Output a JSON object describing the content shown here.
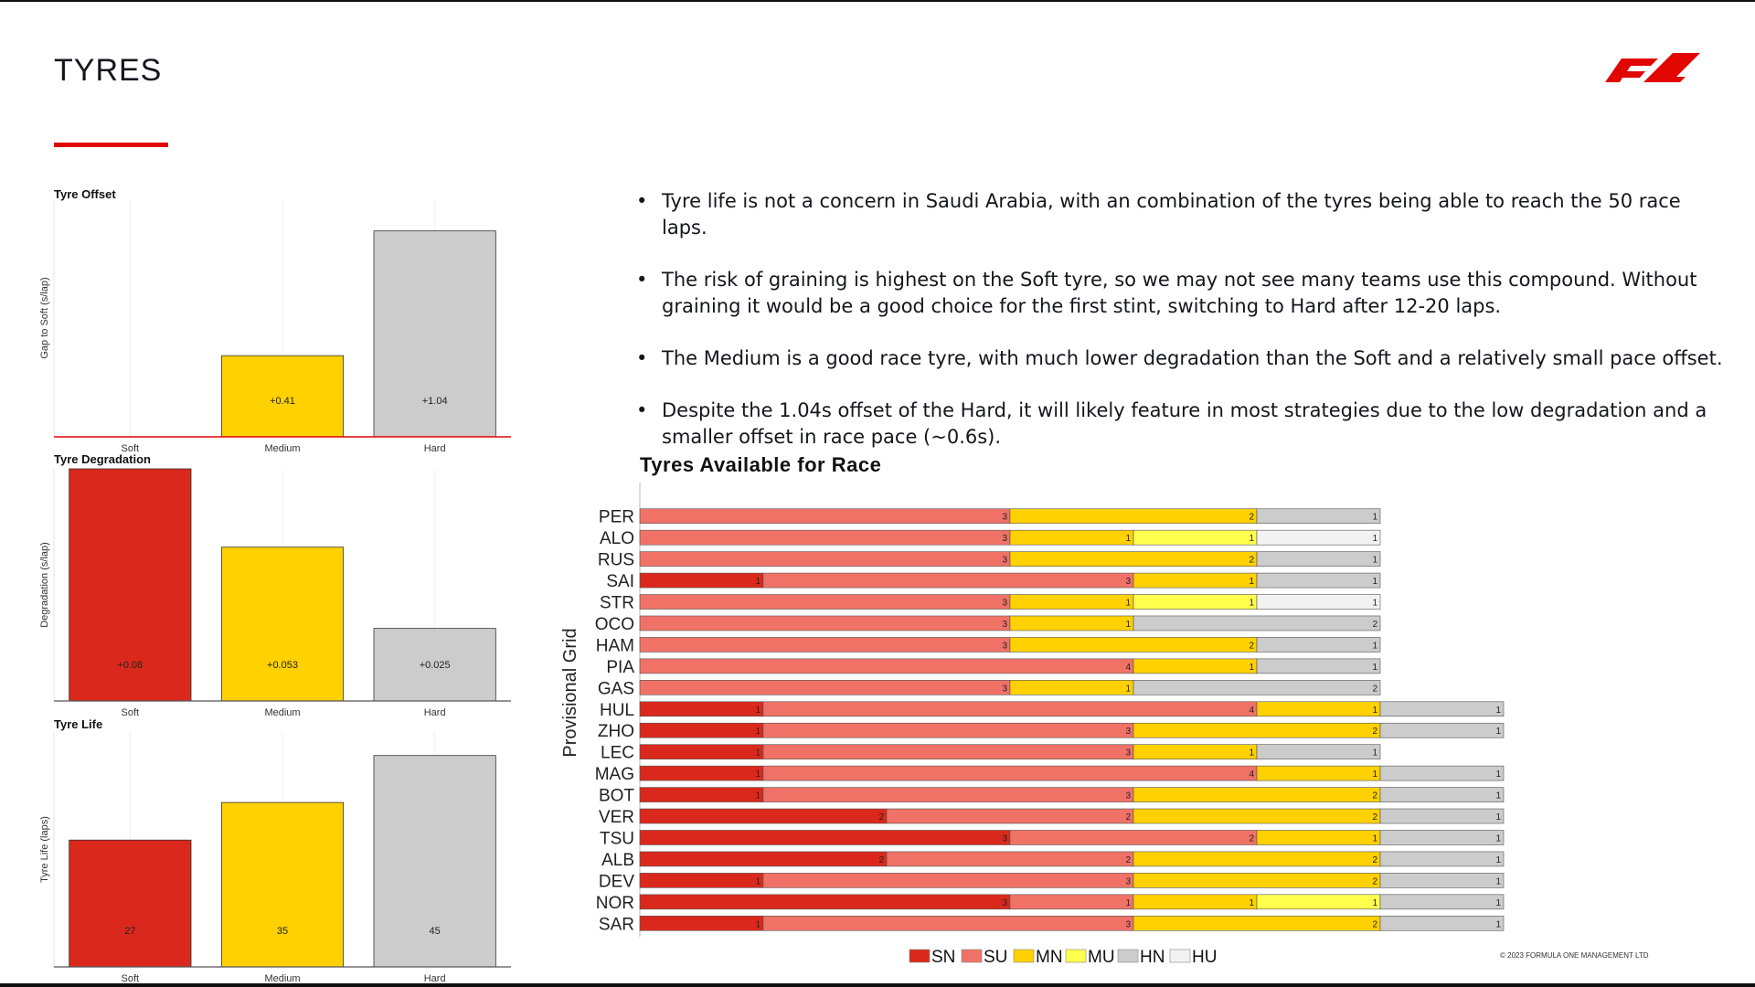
{
  "page": {
    "title": "TYRES",
    "copyright": "© 2023 FORMULA ONE MANAGEMENT LTD",
    "accent": "#e10600"
  },
  "bullets": [
    "Tyre life is not a concern in Saudi Arabia, with an combination of the tyres being able to reach the 50 race laps.",
    "The risk of graining is highest on the Soft tyre, so we may not see many teams use this compound. Without graining it would be a good choice for the first stint, switching to Hard after 12-20 laps.",
    "The Medium is a good race tyre, with much lower degradation than the Soft and a relatively small pace offset.",
    "Despite the 1.04s offset of the Hard, it will likely feature in most strategies due to the low degradation and a smaller offset in race pace (~0.6s)."
  ],
  "chart_data": [
    {
      "type": "bar",
      "title": "Tyre Offset",
      "ylabel": "Gap to Soft (s/lap)",
      "categories": [
        "Soft",
        "Medium",
        "Hard"
      ],
      "values": [
        0,
        0.41,
        1.04
      ],
      "labels": [
        "",
        "+0.41",
        "+1.04"
      ],
      "colors": [
        "#da291c",
        "#ffd100",
        "#cccccc"
      ],
      "ylim": [
        0,
        1.2
      ]
    },
    {
      "type": "bar",
      "title": "Tyre Degradation",
      "ylabel": "Degradation (s/lap)",
      "categories": [
        "Soft",
        "Medium",
        "Hard"
      ],
      "values": [
        0.08,
        0.053,
        0.025
      ],
      "labels": [
        "+0.08",
        "+0.053",
        "+0.025"
      ],
      "colors": [
        "#da291c",
        "#ffd100",
        "#cccccc"
      ],
      "ylim": [
        0,
        0.08
      ]
    },
    {
      "type": "bar",
      "title": "Tyre Life",
      "ylabel": "Tyre Life (laps)",
      "categories": [
        "Soft",
        "Medium",
        "Hard"
      ],
      "values": [
        27,
        35,
        45
      ],
      "labels": [
        "27",
        "35",
        "45"
      ],
      "colors": [
        "#da291c",
        "#ffd100",
        "#cccccc"
      ],
      "ylim": [
        0,
        50
      ]
    },
    {
      "type": "bar",
      "stacked": true,
      "orientation": "horizontal",
      "title": "Tyres Available for Race",
      "ylabel": "Provisional Grid",
      "categories": [
        "PER",
        "ALO",
        "RUS",
        "SAI",
        "STR",
        "OCO",
        "HAM",
        "PIA",
        "GAS",
        "HUL",
        "ZHO",
        "LEC",
        "MAG",
        "BOT",
        "VER",
        "TSU",
        "ALB",
        "DEV",
        "NOR",
        "SAR"
      ],
      "series": [
        {
          "name": "SN",
          "color": "#da291c",
          "values": [
            0,
            0,
            0,
            1,
            0,
            0,
            0,
            0,
            0,
            1,
            1,
            1,
            1,
            1,
            2,
            3,
            2,
            1,
            3,
            1
          ]
        },
        {
          "name": "SU",
          "color": "#f07267",
          "values": [
            3,
            3,
            3,
            3,
            3,
            3,
            3,
            4,
            3,
            4,
            3,
            3,
            4,
            3,
            2,
            2,
            2,
            3,
            1,
            3
          ]
        },
        {
          "name": "MN",
          "color": "#ffd100",
          "values": [
            2,
            1,
            2,
            1,
            1,
            1,
            2,
            1,
            1,
            1,
            2,
            1,
            1,
            2,
            2,
            1,
            2,
            2,
            1,
            2
          ]
        },
        {
          "name": "MU",
          "color": "#ffff4d",
          "values": [
            0,
            1,
            0,
            0,
            1,
            0,
            0,
            0,
            0,
            0,
            0,
            0,
            0,
            0,
            0,
            0,
            0,
            0,
            1,
            0
          ]
        },
        {
          "name": "HN",
          "color": "#cccccc",
          "values": [
            1,
            0,
            1,
            1,
            0,
            2,
            1,
            1,
            2,
            1,
            1,
            1,
            1,
            1,
            1,
            1,
            1,
            1,
            1,
            1
          ]
        },
        {
          "name": "HU",
          "color": "#f2f2f2",
          "values": [
            0,
            1,
            0,
            0,
            1,
            0,
            0,
            0,
            0,
            0,
            0,
            0,
            0,
            0,
            0,
            0,
            0,
            0,
            0,
            0
          ]
        }
      ],
      "xlim": [
        0,
        7
      ]
    }
  ]
}
